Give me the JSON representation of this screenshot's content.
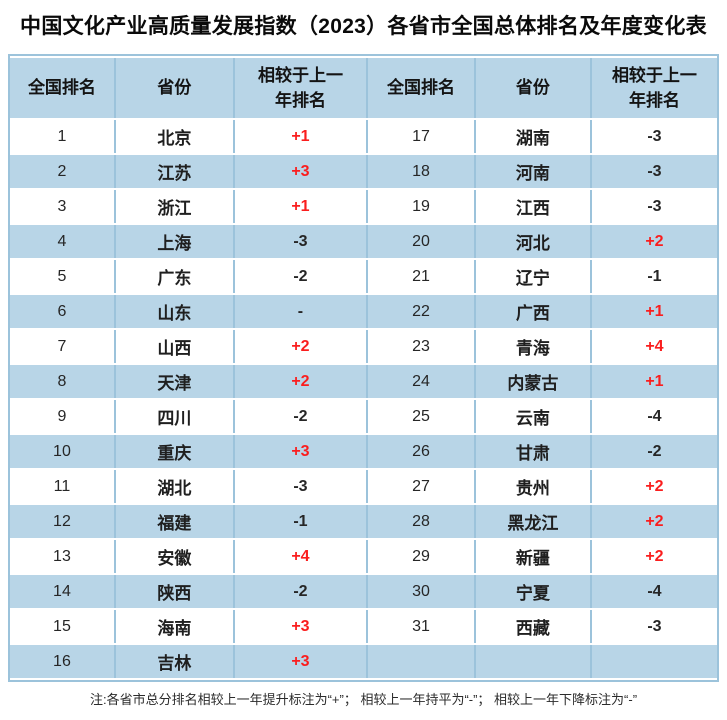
{
  "title": "中国文化产业高质量发展指数（2023）各省市全国总体排名及年度变化表",
  "table": {
    "headers": [
      "全国排名",
      "省份",
      "相较于上一\n年排名",
      "全国排名",
      "省份",
      "相较于上一\n年排名"
    ],
    "rows": [
      [
        "1",
        "北京",
        "+1",
        "17",
        "湖南",
        "-3"
      ],
      [
        "2",
        "江苏",
        "+3",
        "18",
        "河南",
        "-3"
      ],
      [
        "3",
        "浙江",
        "+1",
        "19",
        "江西",
        "-3"
      ],
      [
        "4",
        "上海",
        "-3",
        "20",
        "河北",
        "+2"
      ],
      [
        "5",
        "广东",
        "-2",
        "21",
        "辽宁",
        "-1"
      ],
      [
        "6",
        "山东",
        "-",
        "22",
        "广西",
        "+1"
      ],
      [
        "7",
        "山西",
        "+2",
        "23",
        "青海",
        "+4"
      ],
      [
        "8",
        "天津",
        "+2",
        "24",
        "内蒙古",
        "+1"
      ],
      [
        "9",
        "四川",
        "-2",
        "25",
        "云南",
        "-4"
      ],
      [
        "10",
        "重庆",
        "+3",
        "26",
        "甘肃",
        "-2"
      ],
      [
        "11",
        "湖北",
        "-3",
        "27",
        "贵州",
        "+2"
      ],
      [
        "12",
        "福建",
        "-1",
        "28",
        "黑龙江",
        "+2"
      ],
      [
        "13",
        "安徽",
        "+4",
        "29",
        "新疆",
        "+2"
      ],
      [
        "14",
        "陕西",
        "-2",
        "30",
        "宁夏",
        "-4"
      ],
      [
        "15",
        "海南",
        "+3",
        "31",
        "西藏",
        "-3"
      ],
      [
        "16",
        "吉林",
        "+3",
        "",
        "",
        ""
      ]
    ]
  },
  "note": "注:各省市总分排名相较上一年提升标注为“+”； 相较上一年持平为“-”； 相较上一年下降标注为“-”",
  "colors": {
    "positive_change_red": "#FA1E1E",
    "stripe_blue": "#B8D5E7",
    "border_blue": "#9CC3DB",
    "text_black": "#262626"
  }
}
